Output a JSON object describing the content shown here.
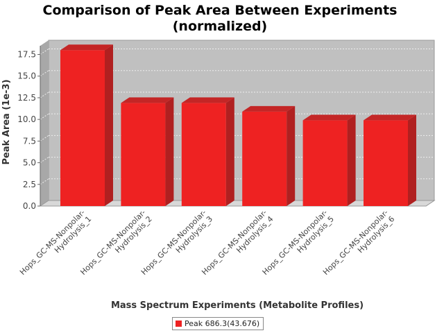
{
  "chart_data": {
    "type": "bar",
    "title_lines": [
      "Comparison of Peak Area Between Experiments",
      "(normalized)"
    ],
    "xlabel": "Mass Spectrum Experiments (Metabolite Profiles)",
    "ylabel": "Peak Area (1e-3)",
    "ylim": [
      0,
      18.5
    ],
    "yticks": [
      "0.0",
      "2.5",
      "5.0",
      "7.5",
      "10.0",
      "12.5",
      "15.0",
      "17.5"
    ],
    "categories": [
      [
        "Hops_GC-MS-Nonpolar-",
        "Hydrolysis_1"
      ],
      [
        "Hops_GC-MS-Nonpolar-",
        "Hydrolysis_2"
      ],
      [
        "Hops_GC-MS-Nonpolar-",
        "Hydrolysis_3"
      ],
      [
        "Hops_GC-MS-Nonpolar-",
        "Hydrolysis_4"
      ],
      [
        "Hops_GC-MS-Nonpolar-",
        "Hydrolysis_5"
      ],
      [
        "Hops_GC-MS-Nonpolar-",
        "Hydrolysis_6"
      ]
    ],
    "series": [
      {
        "name": "Peak 686.3(43.676)",
        "values": [
          18.0,
          11.9,
          11.9,
          10.9,
          9.9,
          9.9
        ]
      }
    ],
    "grid": true,
    "legend_position": "bottom-center",
    "colors": {
      "bar": "#ee2222",
      "bar_top": "#c42626",
      "bar_side": "#b02020",
      "plot_bg": "#c0c0c0",
      "plot_wall": "#a8a8a8",
      "grid": "#eeeeee"
    }
  }
}
